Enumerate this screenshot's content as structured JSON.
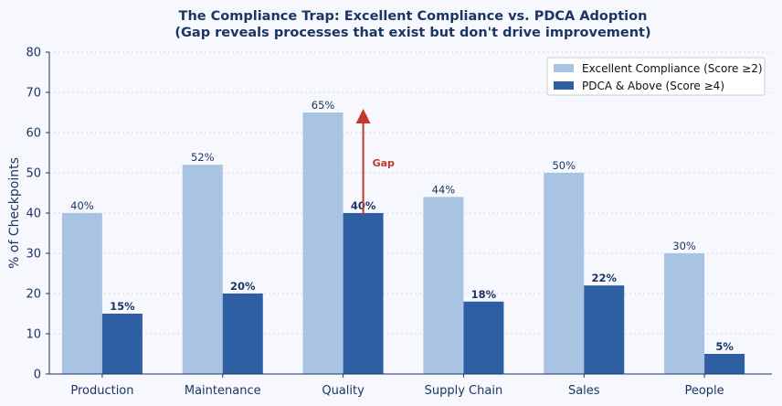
{
  "chart_data": {
    "type": "bar",
    "title": "The Compliance Trap: Excellent Compliance vs. PDCA Adoption",
    "subtitle": "(Gap reveals processes that exist but don't drive improvement)",
    "xlabel": "",
    "ylabel": "% of Checkpoints",
    "ylim": [
      0,
      80
    ],
    "yticks": [
      0,
      10,
      20,
      30,
      40,
      50,
      60,
      70,
      80
    ],
    "categories": [
      "Production",
      "Maintenance",
      "Quality",
      "Supply Chain",
      "Sales",
      "People"
    ],
    "series": [
      {
        "name": "Excellent Compliance (Score ≥2)",
        "color": "#a9c4e2",
        "values": [
          40,
          52,
          65,
          44,
          50,
          30
        ],
        "labels": [
          "40%",
          "52%",
          "65%",
          "44%",
          "50%",
          "30%"
        ]
      },
      {
        "name": "PDCA & Above (Score ≥4)",
        "color": "#2e5fa3",
        "values": [
          15,
          20,
          40,
          18,
          22,
          5
        ],
        "labels": [
          "15%",
          "20%",
          "40%",
          "18%",
          "22%",
          "5%"
        ]
      }
    ],
    "annotation": {
      "text": "Gap",
      "category": "Quality",
      "from": 40,
      "to": 65,
      "color": "#c0392b"
    },
    "legend_position": "top-right",
    "grid": true
  }
}
